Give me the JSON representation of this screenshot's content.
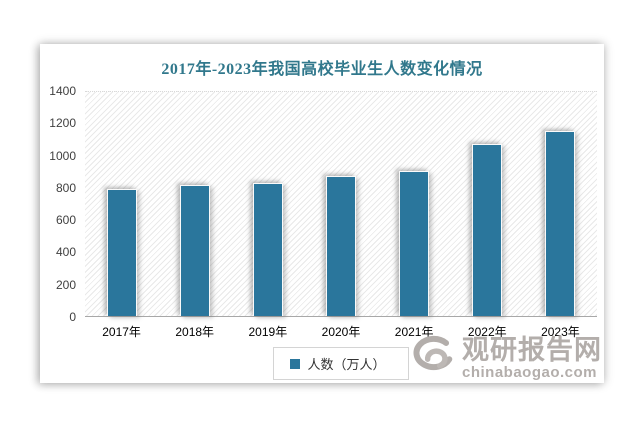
{
  "chart_data": {
    "type": "bar",
    "title": "2017年-2023年我国高校毕业生人数变化情况",
    "categories": [
      "2017年",
      "2018年",
      "2019年",
      "2020年",
      "2021年",
      "2022年",
      "2023年"
    ],
    "values": [
      795,
      820,
      834,
      874,
      909,
      1076,
      1158
    ],
    "series_name": "人数（万人）",
    "xlabel": "",
    "ylabel": "",
    "ylim": [
      0,
      1400
    ],
    "ytick_step": 200,
    "grid": false,
    "legend_position": "bottom",
    "bar_color": "#2a769c",
    "title_color": "#31788c",
    "plot_hatch": "diagonal-lines"
  },
  "legend": {
    "label": "人数（万人）",
    "swatch_color": "#2a769c"
  },
  "watermark": {
    "logo": "swirl-logo",
    "name_cn": "观研报告网",
    "domain": "chinabaogao.com",
    "color": "#b3aeab"
  }
}
